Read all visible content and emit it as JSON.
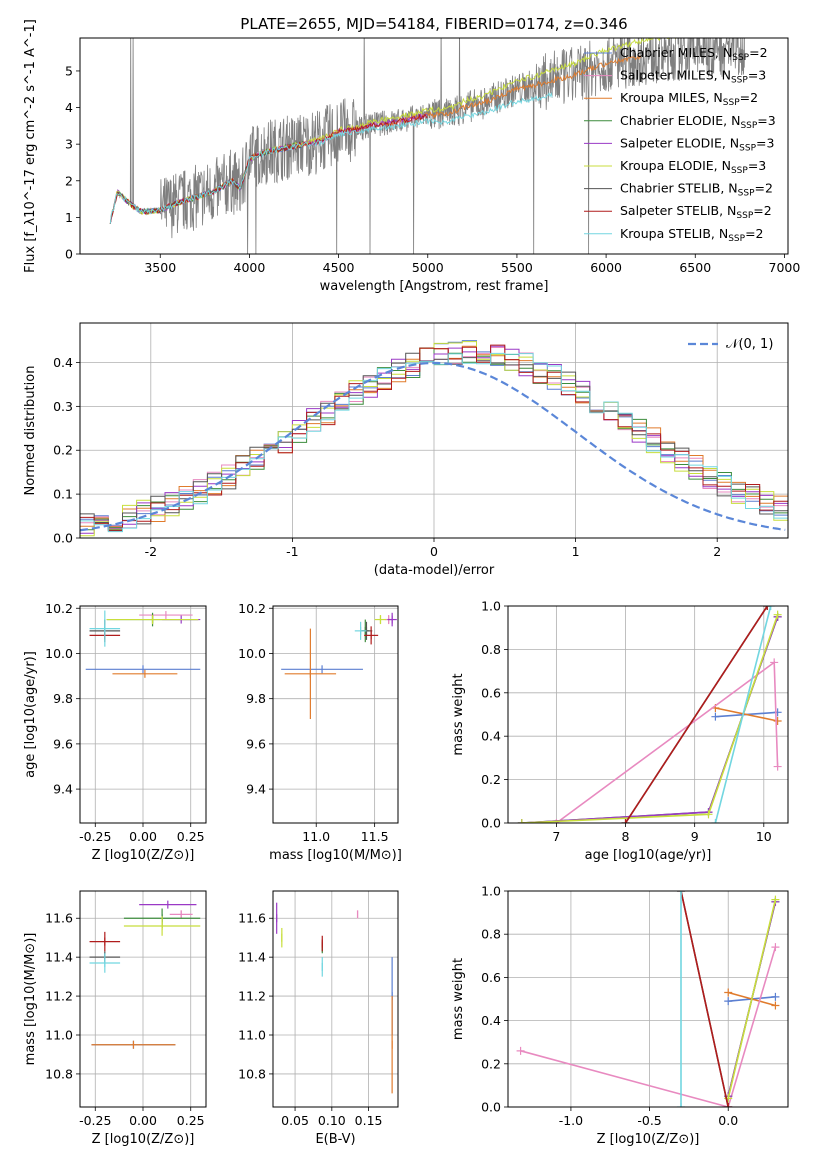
{
  "figure_title": "PLATE=2655, MJD=54184, FIBERID=0174, z=0.346",
  "colors": {
    "Chabrier MILES": "#5b7fd1",
    "Salpeter MILES": "#e88ac0",
    "Kroupa MILES": "#e07b2c",
    "Chabrier ELODIE": "#3c8c3c",
    "Salpeter ELODIE": "#9a39c6",
    "Kroupa ELODIE": "#c8de3c",
    "Chabrier STELIB": "#555555",
    "Salpeter STELIB": "#b01c1c",
    "Kroupa STELIB": "#72d6e0",
    "gaussian": "#5b87d8"
  },
  "chart_data": [
    {
      "id": "spectrum",
      "type": "line",
      "xlabel": "wavelength [Angstrom, rest frame]",
      "ylabel": "Flux [f_λ10^-17 erg cm^-2 s^-1 A^-1]",
      "xlim": [
        3050,
        7020
      ],
      "ylim": [
        0,
        5.9
      ],
      "xticks": [
        3500,
        4000,
        4500,
        5000,
        5500,
        6000,
        6500,
        7000
      ],
      "yticks": [
        0,
        1,
        2,
        3,
        4,
        5
      ],
      "legend_position": "top-right",
      "legend": [
        {
          "model": "Chabrier MILES",
          "label": "Chabrier MILES, N",
          "sub": "SSP",
          "tail": "=2"
        },
        {
          "model": "Salpeter MILES",
          "label": "Salpeter MILES, N",
          "sub": "SSP",
          "tail": "=3"
        },
        {
          "model": "Kroupa MILES",
          "label": "Kroupa MILES, N",
          "sub": "SSP",
          "tail": "=2"
        },
        {
          "model": "Chabrier ELODIE",
          "label": "Chabrier ELODIE, N",
          "sub": "SSP",
          "tail": "=3"
        },
        {
          "model": "Salpeter ELODIE",
          "label": "Salpeter ELODIE, N",
          "sub": "SSP",
          "tail": "=3"
        },
        {
          "model": "Kroupa ELODIE",
          "label": "Kroupa ELODIE, N",
          "sub": "SSP",
          "tail": "=3"
        },
        {
          "model": "Chabrier STELIB",
          "label": "Chabrier STELIB, N",
          "sub": "SSP",
          "tail": "=2"
        },
        {
          "model": "Salpeter STELIB",
          "label": "Salpeter STELIB, N",
          "sub": "SSP",
          "tail": "=2"
        },
        {
          "model": "Kroupa STELIB",
          "label": "Kroupa STELIB, N",
          "sub": "SSP",
          "tail": "=2"
        }
      ],
      "data_shape": [
        [
          3220,
          0.9
        ],
        [
          3260,
          1.7
        ],
        [
          3300,
          1.5
        ],
        [
          3350,
          1.3
        ],
        [
          3400,
          1.15
        ],
        [
          3500,
          1.2
        ],
        [
          3600,
          1.4
        ],
        [
          3700,
          1.55
        ],
        [
          3800,
          1.7
        ],
        [
          3900,
          2.0
        ],
        [
          3950,
          1.8
        ],
        [
          4000,
          2.6
        ],
        [
          4100,
          2.8
        ],
        [
          4200,
          2.9
        ],
        [
          4300,
          3.0
        ],
        [
          4400,
          3.1
        ],
        [
          4500,
          3.35
        ],
        [
          4600,
          3.4
        ],
        [
          4700,
          3.55
        ],
        [
          4800,
          3.6
        ],
        [
          4900,
          3.7
        ],
        [
          5000,
          3.8
        ],
        [
          5100,
          3.8
        ],
        [
          5200,
          4.0
        ],
        [
          5300,
          4.1
        ],
        [
          5400,
          4.3
        ],
        [
          5500,
          4.5
        ],
        [
          5600,
          4.6
        ],
        [
          5700,
          4.75
        ],
        [
          5800,
          4.85
        ],
        [
          6000,
          5.2
        ],
        [
          6200,
          5.4
        ],
        [
          6400,
          5.5
        ],
        [
          6600,
          5.6
        ],
        [
          6780,
          5.7
        ]
      ]
    },
    {
      "id": "residuals",
      "type": "line",
      "xlabel": "(data-model)/error",
      "ylabel": "Normed distribution",
      "xlim": [
        -2.5,
        2.5
      ],
      "ylim": [
        0,
        0.49
      ],
      "xticks": [
        -2,
        -1,
        0,
        1,
        2
      ],
      "yticks": [
        0.0,
        0.1,
        0.2,
        0.3,
        0.4
      ],
      "legend": [
        "𝒩(0, 1)"
      ],
      "legend_position": "top-right",
      "grid": true
    },
    {
      "id": "age_vs_Z",
      "type": "scatter",
      "xlabel": "Z [log10(Z/Z⊙)]",
      "ylabel": "age [log10(age/yr)]",
      "xlim": [
        -0.33,
        0.33
      ],
      "ylim": [
        9.25,
        10.21
      ],
      "xticks": [
        -0.25,
        0.0,
        0.25
      ],
      "yticks": [
        9.4,
        9.6,
        9.8,
        10.0,
        10.2
      ],
      "grid": true,
      "points": [
        {
          "model": "Chabrier MILES",
          "x": 0.0,
          "y": 9.93,
          "xerr": 0.3,
          "yerr": 0.0
        },
        {
          "model": "Kroupa MILES",
          "x": 0.01,
          "y": 9.91,
          "xerr": 0.17,
          "yerr": 0.0
        },
        {
          "model": "Salpeter MILES",
          "x": 0.12,
          "y": 10.17,
          "xerr": 0.14,
          "yerr": 0.0
        },
        {
          "model": "Chabrier ELODIE",
          "x": 0.05,
          "y": 10.15,
          "xerr": 0.24,
          "yerr": 0.03
        },
        {
          "model": "Salpeter ELODIE",
          "x": 0.2,
          "y": 10.15,
          "xerr": 0.1,
          "yerr": 0.0
        },
        {
          "model": "Kroupa ELODIE",
          "x": 0.05,
          "y": 10.15,
          "xerr": 0.24,
          "yerr": 0.02
        },
        {
          "model": "Chabrier STELIB",
          "x": -0.2,
          "y": 10.1,
          "xerr": 0.08,
          "yerr": 0.05
        },
        {
          "model": "Salpeter STELIB",
          "x": -0.2,
          "y": 10.08,
          "xerr": 0.08,
          "yerr": 0.0
        },
        {
          "model": "Kroupa STELIB",
          "x": -0.2,
          "y": 10.11,
          "xerr": 0.08,
          "yerr": 0.08
        }
      ]
    },
    {
      "id": "age_vs_mass",
      "type": "scatter",
      "xlabel": "mass [log10(M/M⊙)]",
      "ylabel": "",
      "xlim": [
        10.63,
        11.7
      ],
      "ylim": [
        9.25,
        10.21
      ],
      "xticks": [
        11.0,
        11.5
      ],
      "yticks": [
        9.4,
        9.6,
        9.8,
        10.0,
        10.2
      ],
      "grid": true,
      "points": [
        {
          "model": "Chabrier MILES",
          "x": 11.05,
          "y": 9.93,
          "xerr": 0.35,
          "yerr": 0.0
        },
        {
          "model": "Kroupa MILES",
          "x": 10.95,
          "y": 9.91,
          "xerr": 0.22,
          "yerr": 0.2
        },
        {
          "model": "Salpeter MILES",
          "x": 11.62,
          "y": 10.15,
          "xerr": 0.03,
          "yerr": 0.02
        },
        {
          "model": "Chabrier ELODIE",
          "x": 11.42,
          "y": 10.1,
          "xerr": 0.03,
          "yerr": 0.05
        },
        {
          "model": "Salpeter ELODIE",
          "x": 11.65,
          "y": 10.15,
          "xerr": 0.04,
          "yerr": 0.03
        },
        {
          "model": "Kroupa ELODIE",
          "x": 11.55,
          "y": 10.15,
          "xerr": 0.05,
          "yerr": 0.02
        },
        {
          "model": "Chabrier STELIB",
          "x": 11.43,
          "y": 10.1,
          "xerr": 0.05,
          "yerr": 0.04
        },
        {
          "model": "Salpeter STELIB",
          "x": 11.47,
          "y": 10.08,
          "xerr": 0.06,
          "yerr": 0.04
        },
        {
          "model": "Kroupa STELIB",
          "x": 11.38,
          "y": 10.1,
          "xerr": 0.05,
          "yerr": 0.04
        }
      ]
    },
    {
      "id": "mass_weight_vs_age",
      "type": "line",
      "xlabel": "age [log10(age/yr)]",
      "ylabel": "mass weight",
      "xlim": [
        6.3,
        10.35
      ],
      "ylim": [
        0.0,
        1.0
      ],
      "xticks": [
        7,
        8,
        9,
        10
      ],
      "yticks": [
        0.0,
        0.2,
        0.4,
        0.6,
        0.8,
        1.0
      ],
      "grid": true,
      "series": [
        {
          "model": "Chabrier MILES",
          "x": [
            9.3,
            10.2
          ],
          "y": [
            0.49,
            0.51
          ]
        },
        {
          "model": "Kroupa MILES",
          "x": [
            9.3,
            10.2
          ],
          "y": [
            0.53,
            0.47
          ]
        },
        {
          "model": "Salpeter MILES",
          "x": [
            7.0,
            10.15,
            10.2
          ],
          "y": [
            0.0,
            0.74,
            0.26
          ]
        },
        {
          "model": "Chabrier ELODIE",
          "x": [
            6.5,
            9.2,
            10.2
          ],
          "y": [
            0.0,
            0.05,
            0.95
          ]
        },
        {
          "model": "Salpeter ELODIE",
          "x": [
            6.5,
            9.2,
            10.2
          ],
          "y": [
            0.0,
            0.05,
            0.95
          ]
        },
        {
          "model": "Kroupa ELODIE",
          "x": [
            6.5,
            9.2,
            10.2
          ],
          "y": [
            0.0,
            0.04,
            0.96
          ]
        },
        {
          "model": "Chabrier STELIB",
          "x": [
            8.0,
            10.05
          ],
          "y": [
            0.0,
            1.0
          ]
        },
        {
          "model": "Salpeter STELIB",
          "x": [
            8.0,
            10.05
          ],
          "y": [
            0.0,
            1.0
          ]
        },
        {
          "model": "Kroupa STELIB",
          "x": [
            9.3,
            10.1
          ],
          "y": [
            0.0,
            1.0
          ]
        }
      ]
    },
    {
      "id": "mass_vs_Z",
      "type": "scatter",
      "xlabel": "Z [log10(Z/Z⊙)]",
      "ylabel": "mass [log10(M/M⊙)]",
      "xlim": [
        -0.33,
        0.33
      ],
      "ylim": [
        10.63,
        11.74
      ],
      "xticks": [
        -0.25,
        0.0,
        0.25
      ],
      "yticks": [
        10.8,
        11.0,
        11.2,
        11.4,
        11.6
      ],
      "grid": true,
      "points": [
        {
          "model": "Chabrier MILES",
          "x": -0.05,
          "y": 10.95,
          "xerr": 0.22,
          "yerr": 0.0
        },
        {
          "model": "Kroupa MILES",
          "x": -0.05,
          "y": 10.95,
          "xerr": 0.22,
          "yerr": 0.0
        },
        {
          "model": "Salpeter MILES",
          "x": 0.2,
          "y": 11.62,
          "xerr": 0.06,
          "yerr": 0.02
        },
        {
          "model": "Chabrier ELODIE",
          "x": 0.1,
          "y": 11.6,
          "xerr": 0.2,
          "yerr": 0.05
        },
        {
          "model": "Salpeter ELODIE",
          "x": 0.13,
          "y": 11.67,
          "xerr": 0.15,
          "yerr": 0.0
        },
        {
          "model": "Kroupa ELODIE",
          "x": 0.1,
          "y": 11.56,
          "xerr": 0.2,
          "yerr": 0.05
        },
        {
          "model": "Chabrier STELIB",
          "x": -0.2,
          "y": 11.4,
          "xerr": 0.08,
          "yerr": 0.03
        },
        {
          "model": "Salpeter STELIB",
          "x": -0.2,
          "y": 11.48,
          "xerr": 0.08,
          "yerr": 0.05
        },
        {
          "model": "Kroupa STELIB",
          "x": -0.2,
          "y": 11.37,
          "xerr": 0.08,
          "yerr": 0.05
        }
      ]
    },
    {
      "id": "mass_vs_EBV",
      "type": "scatter",
      "xlabel": "E(B-V)",
      "ylabel": "",
      "xlim": [
        0.02,
        0.19
      ],
      "ylim": [
        10.63,
        11.74
      ],
      "xticks": [
        0.05,
        0.1,
        0.15
      ],
      "yticks": [
        10.8,
        11.0,
        11.2,
        11.4,
        11.6
      ],
      "grid": true,
      "points": [
        {
          "model": "Chabrier MILES",
          "x": 0.182,
          "y": 11.2,
          "yerr": 0.2
        },
        {
          "model": "Kroupa MILES",
          "x": 0.182,
          "y": 10.95,
          "yerr": 0.25
        },
        {
          "model": "Salpeter MILES",
          "x": 0.135,
          "y": 11.62,
          "yerr": 0.02
        },
        {
          "model": "Salpeter ELODIE",
          "x": 0.025,
          "y": 11.6,
          "yerr": 0.08
        },
        {
          "model": "Kroupa ELODIE",
          "x": 0.032,
          "y": 11.5,
          "yerr": 0.05
        },
        {
          "model": "Chabrier ELODIE",
          "x": 0.087,
          "y": 11.45,
          "yerr": 0.03
        },
        {
          "model": "Salpeter STELIB",
          "x": 0.087,
          "y": 11.47,
          "yerr": 0.04
        },
        {
          "model": "Kroupa STELIB",
          "x": 0.087,
          "y": 11.35,
          "yerr": 0.05
        }
      ]
    },
    {
      "id": "mass_weight_vs_Z",
      "type": "line",
      "xlabel": "Z [log10(Z/Z⊙)]",
      "ylabel": "mass weight",
      "xlim": [
        -1.4,
        0.38
      ],
      "ylim": [
        0.0,
        1.0
      ],
      "xticks": [
        -1.0,
        -0.5,
        0.0
      ],
      "yticks": [
        0.0,
        0.2,
        0.4,
        0.6,
        0.8,
        1.0
      ],
      "grid": true,
      "series": [
        {
          "model": "Chabrier MILES",
          "x": [
            0.0,
            0.3
          ],
          "y": [
            0.49,
            0.51
          ]
        },
        {
          "model": "Kroupa MILES",
          "x": [
            0.0,
            0.3
          ],
          "y": [
            0.53,
            0.47
          ]
        },
        {
          "model": "Salpeter MILES",
          "x": [
            -1.32,
            0.0,
            0.3
          ],
          "y": [
            0.26,
            0.0,
            0.74
          ]
        },
        {
          "model": "Chabrier ELODIE",
          "x": [
            0.0,
            0.3
          ],
          "y": [
            0.05,
            0.95
          ]
        },
        {
          "model": "Salpeter ELODIE",
          "x": [
            0.0,
            0.3
          ],
          "y": [
            0.05,
            0.95
          ]
        },
        {
          "model": "Kroupa ELODIE",
          "x": [
            0.0,
            0.3
          ],
          "y": [
            0.04,
            0.96
          ]
        },
        {
          "model": "Chabrier STELIB",
          "x": [
            -0.3,
            0.0
          ],
          "y": [
            1.0,
            0.0
          ]
        },
        {
          "model": "Salpeter STELIB",
          "x": [
            -0.3,
            0.0
          ],
          "y": [
            1.0,
            0.0
          ]
        },
        {
          "model": "Kroupa STELIB",
          "x": [
            -0.3,
            -0.3
          ],
          "y": [
            0.0,
            1.0
          ]
        }
      ]
    }
  ]
}
